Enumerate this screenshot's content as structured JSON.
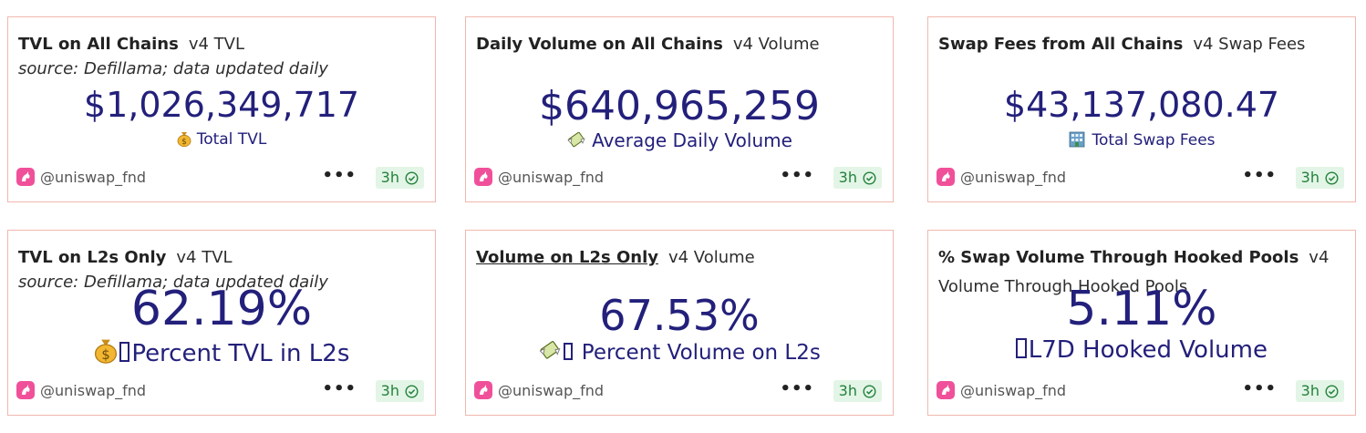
{
  "author": "@uniswap_fnd",
  "refresh_age": "3h",
  "cards": [
    {
      "title": "TVL on All Chains",
      "subtitle": "v4 TVL",
      "source": "source: Defillama; data updated daily",
      "value": "$1,026,349,717",
      "label": "Total TVL",
      "label_icon": "money-bag-icon"
    },
    {
      "title": "Daily Volume on All Chains",
      "subtitle": "v4 Volume",
      "value": "$640,965,259",
      "label": "Average Daily Volume",
      "label_icon": "money-wings-icon"
    },
    {
      "title": "Swap Fees from All Chains",
      "subtitle": "v4 Swap Fees",
      "value": "$43,137,080.47",
      "label": "Total Swap Fees",
      "label_icon": "office-building-icon"
    },
    {
      "title": "TVL on L2s Only",
      "subtitle": "v4 TVL",
      "source": "source: Defillama; data updated daily",
      "value": "62.19%",
      "label": "Percent TVL in L2s",
      "label_icon": "money-bag-icon"
    },
    {
      "title": "Volume on L2s Only",
      "subtitle": "v4 Volume",
      "value": "67.53%",
      "label": " Percent Volume on L2s",
      "label_icon": "money-wings-icon"
    },
    {
      "title": "% Swap Volume Through Hooked Pools",
      "subtitle": "v4 Volume Through Hooked Pools",
      "value": "5.11%",
      "label": "L7D Hooked Volume",
      "label_icon": "missing-glyph-icon"
    }
  ],
  "colors": {
    "value_text": "#23207b",
    "card_border": "#f0b8ae",
    "badge_bg": "#e3f5e6",
    "badge_text": "#23813c",
    "avatar": "#f0509a"
  }
}
